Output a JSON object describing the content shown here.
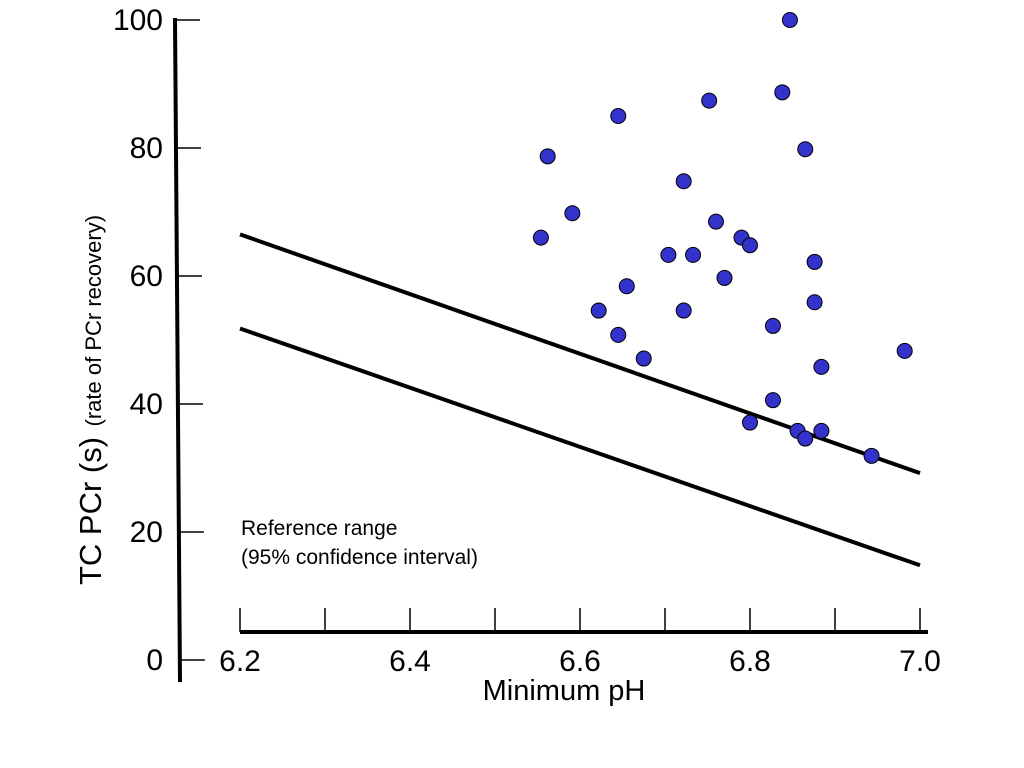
{
  "chart_data": {
    "type": "scatter",
    "xlabel": "Minimum pH",
    "ylabel_main": "TC PCr (s)",
    "ylabel_sub": "(rate of PCr recovery)",
    "xlim": [
      6.2,
      7.0
    ],
    "ylim": [
      0,
      100
    ],
    "x_ticks": [
      "6.2",
      "6.4",
      "6.6",
      "6.8",
      "7.0"
    ],
    "x_minor_ticks": [
      6.3,
      6.5,
      6.7,
      6.9
    ],
    "y_ticks": [
      "0",
      "20",
      "40",
      "60",
      "80",
      "100"
    ],
    "annotation": [
      "Reference range",
      "(95% confidence interval)"
    ],
    "point_color": "#3333cc",
    "reference_lines": [
      {
        "x": [
          6.2,
          7.0
        ],
        "y": [
          66.5,
          29.2
        ]
      },
      {
        "x": [
          6.2,
          7.0
        ],
        "y": [
          51.8,
          14.8
        ]
      }
    ],
    "points": [
      {
        "x": 6.847,
        "y": 100
      },
      {
        "x": 6.838,
        "y": 88.7
      },
      {
        "x": 6.752,
        "y": 87.4
      },
      {
        "x": 6.645,
        "y": 85
      },
      {
        "x": 6.865,
        "y": 79.8
      },
      {
        "x": 6.562,
        "y": 78.7
      },
      {
        "x": 6.722,
        "y": 74.8
      },
      {
        "x": 6.591,
        "y": 69.8
      },
      {
        "x": 6.76,
        "y": 68.5
      },
      {
        "x": 6.554,
        "y": 66
      },
      {
        "x": 6.79,
        "y": 66
      },
      {
        "x": 6.8,
        "y": 64.8
      },
      {
        "x": 6.704,
        "y": 63.3
      },
      {
        "x": 6.733,
        "y": 63.3
      },
      {
        "x": 6.876,
        "y": 62.2
      },
      {
        "x": 6.77,
        "y": 59.7
      },
      {
        "x": 6.655,
        "y": 58.4
      },
      {
        "x": 6.876,
        "y": 55.9
      },
      {
        "x": 6.622,
        "y": 54.6
      },
      {
        "x": 6.722,
        "y": 54.6
      },
      {
        "x": 6.827,
        "y": 52.2
      },
      {
        "x": 6.645,
        "y": 50.8
      },
      {
        "x": 6.982,
        "y": 48.3
      },
      {
        "x": 6.675,
        "y": 47.1
      },
      {
        "x": 6.884,
        "y": 45.8
      },
      {
        "x": 6.827,
        "y": 40.6
      },
      {
        "x": 6.8,
        "y": 37.1
      },
      {
        "x": 6.856,
        "y": 35.8
      },
      {
        "x": 6.884,
        "y": 35.8
      },
      {
        "x": 6.865,
        "y": 34.6
      },
      {
        "x": 6.943,
        "y": 31.9
      }
    ]
  }
}
